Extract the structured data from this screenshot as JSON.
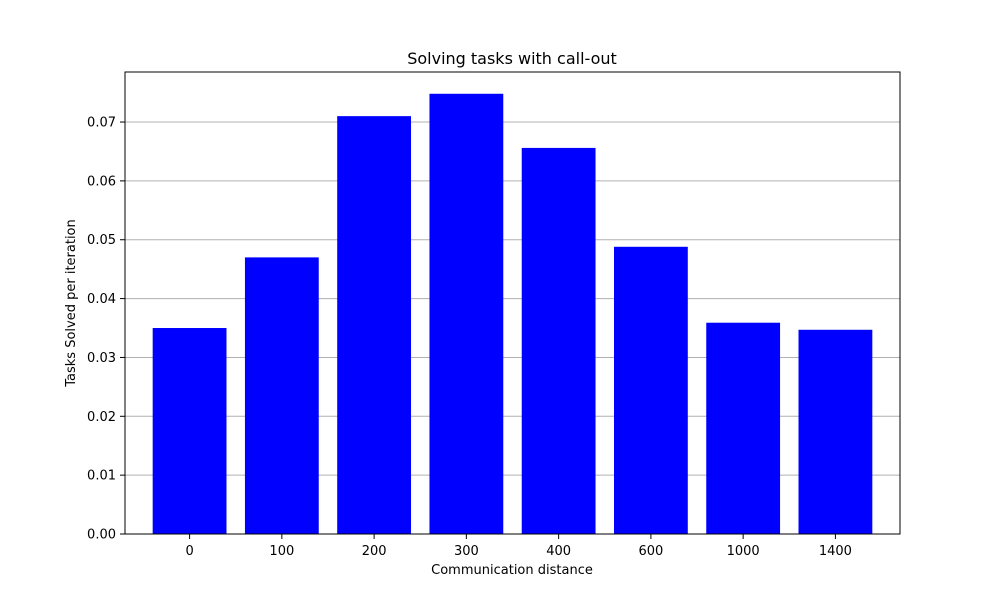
{
  "chart_data": {
    "type": "bar",
    "title": "Solving tasks with call-out",
    "xlabel": "Communication distance",
    "ylabel": "Tasks Solved per iteration",
    "categories": [
      "0",
      "100",
      "200",
      "300",
      "400",
      "600",
      "1000",
      "1400"
    ],
    "values": [
      0.035,
      0.047,
      0.071,
      0.0748,
      0.0656,
      0.0488,
      0.0359,
      0.0347
    ],
    "ylim": [
      0,
      0.0785
    ],
    "yticks": [
      "0.00",
      "0.01",
      "0.02",
      "0.03",
      "0.04",
      "0.05",
      "0.06",
      "0.07"
    ],
    "grid": "y",
    "bar_color": "#0000ff",
    "grid_color": "#b0b0b0"
  }
}
